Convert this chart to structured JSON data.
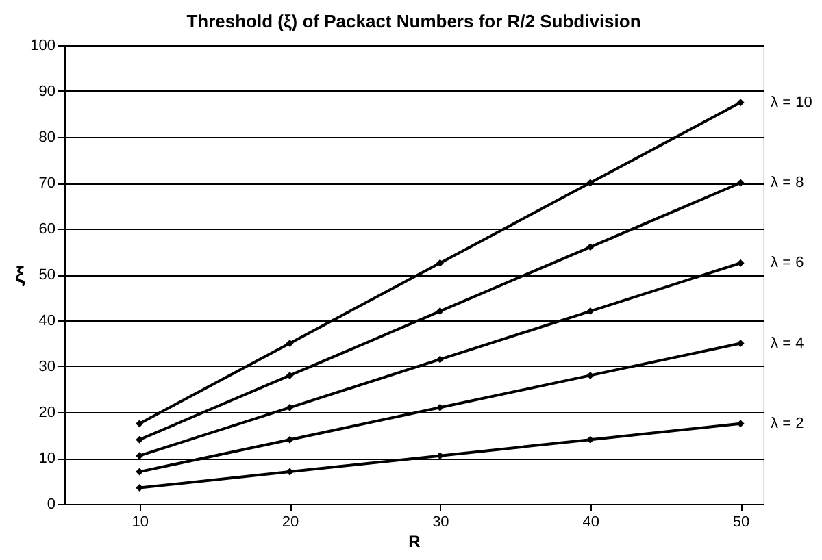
{
  "chart_data": {
    "type": "line",
    "title": "Threshold (ξ) of Packact Numbers for R/2 Subdivision",
    "xlabel": "R",
    "ylabel": "ξ",
    "categories": [
      "10",
      "20",
      "30",
      "40",
      "50"
    ],
    "series": [
      {
        "name": "λ = 2",
        "color": "#000000",
        "values": [
          3.5,
          7,
          10.5,
          14,
          17.5
        ]
      },
      {
        "name": "λ = 4",
        "color": "#000000",
        "values": [
          7,
          14,
          21,
          28,
          35
        ]
      },
      {
        "name": "λ = 6",
        "color": "#000000",
        "values": [
          10.5,
          21,
          31.5,
          42,
          52.5
        ]
      },
      {
        "name": "λ = 8",
        "color": "#000000",
        "values": [
          14,
          28,
          42,
          56,
          70
        ]
      },
      {
        "name": "λ = 10",
        "color": "#000000",
        "values": [
          17.5,
          35,
          52.5,
          70,
          87.5
        ]
      }
    ],
    "ylim": [
      0,
      100
    ],
    "yticks": [
      0,
      10,
      20,
      30,
      40,
      50,
      60,
      70,
      80,
      90,
      100
    ],
    "grid": "y",
    "marker": "diamond",
    "line_style": "solid"
  }
}
